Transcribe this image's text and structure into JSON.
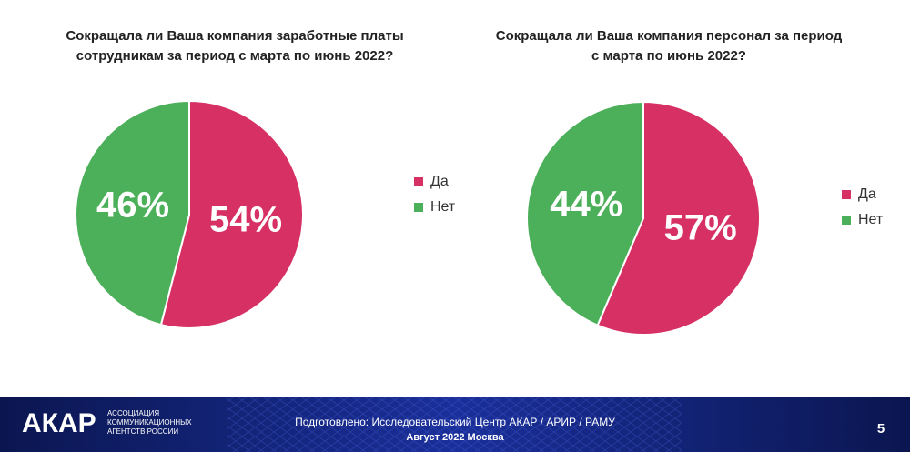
{
  "chart_data": [
    {
      "type": "pie",
      "title": [
        "Сокращала ли Ваша компания заработные платы",
        "сотрудникам за период с марта по июнь 2022?"
      ],
      "categories": [
        "Да",
        "Нет"
      ],
      "values": [
        54,
        46
      ],
      "value_labels": [
        "54%",
        "46%"
      ],
      "colors": [
        "#d63064",
        "#4caf5a"
      ],
      "legend": "right"
    },
    {
      "type": "pie",
      "title": [
        "Сокращала ли Ваша компания персонал за период",
        "с марта по июнь 2022?"
      ],
      "categories": [
        "Да",
        "Нет"
      ],
      "values": [
        57,
        44
      ],
      "value_labels": [
        "57%",
        "44%"
      ],
      "colors": [
        "#d63064",
        "#4caf5a"
      ],
      "legend": "right"
    }
  ],
  "footer": {
    "logo": "АКАР",
    "logo_subtitle": [
      "АССОЦИАЦИЯ",
      "КОММУНИКАЦИОННЫХ",
      "АГЕНТСТВ РОССИИ"
    ],
    "credit": "Подготовлено: Исследовательский Центр АКАР / АРИР / РАМУ",
    "date": "Август 2022 Москва",
    "page": "5"
  }
}
